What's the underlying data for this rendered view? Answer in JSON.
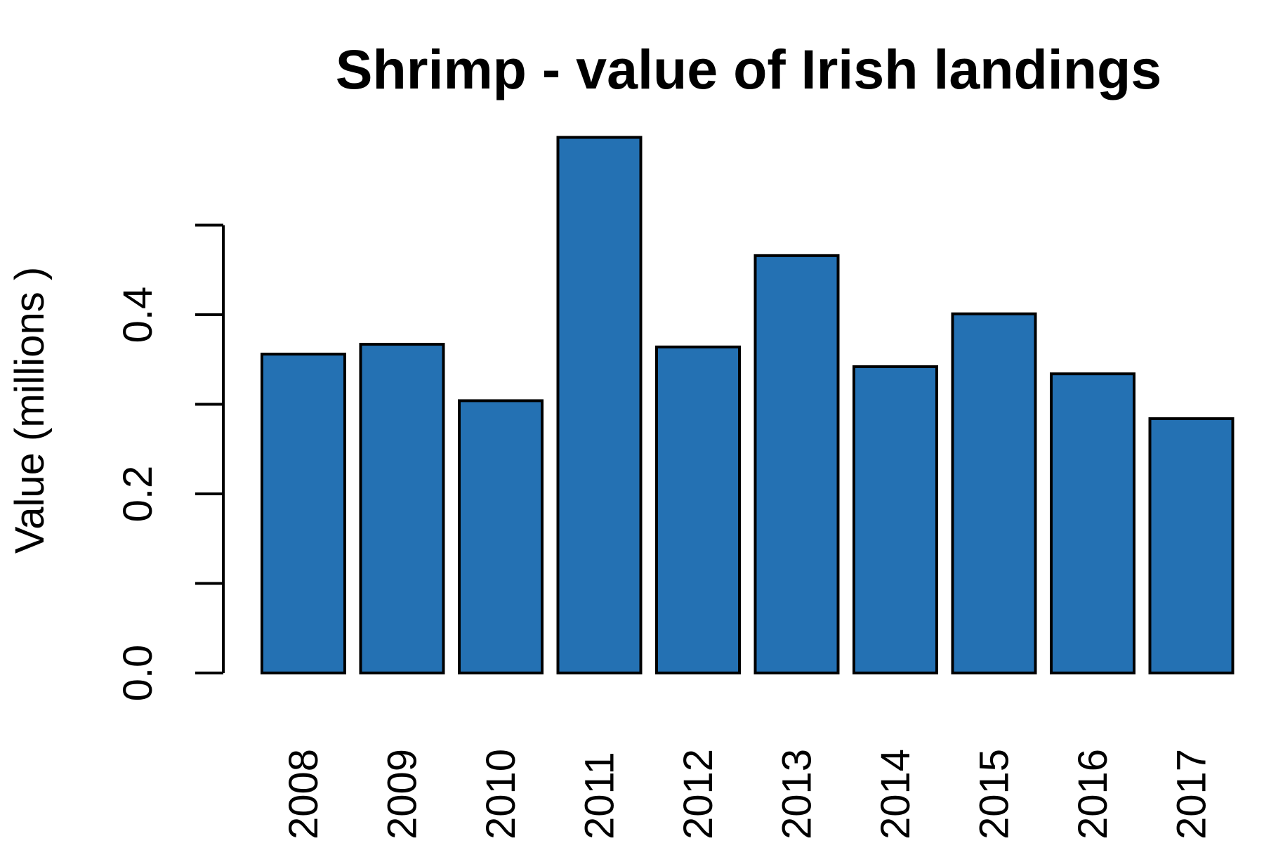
{
  "chart_data": {
    "type": "bar",
    "title": "Shrimp - value of Irish landings",
    "xlabel": "",
    "ylabel": "Value (millions )",
    "categories": [
      "2008",
      "2009",
      "2010",
      "2011",
      "2012",
      "2013",
      "2014",
      "2015",
      "2016",
      "2017"
    ],
    "values": [
      0.356,
      0.367,
      0.304,
      0.598,
      0.364,
      0.466,
      0.342,
      0.401,
      0.334,
      0.284
    ],
    "ylim": [
      0,
      0.6
    ],
    "y_ticks": [
      0.0,
      0.1,
      0.2,
      0.3,
      0.4,
      0.5
    ],
    "y_tick_labels": [
      "0.0",
      "",
      "0.2",
      "",
      "0.4",
      ""
    ],
    "grid": false,
    "legend": "none",
    "bar_color": "#2471b3",
    "edge_color": "#000000"
  }
}
